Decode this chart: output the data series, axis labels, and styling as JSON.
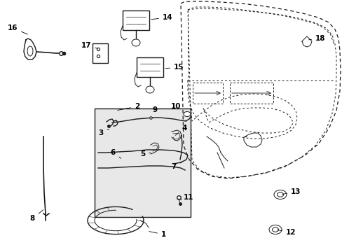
{
  "bg_color": "#ffffff",
  "line_color": "#1a1a1a",
  "box_bg": "#e8e8e8",
  "fontsize": 7.5
}
